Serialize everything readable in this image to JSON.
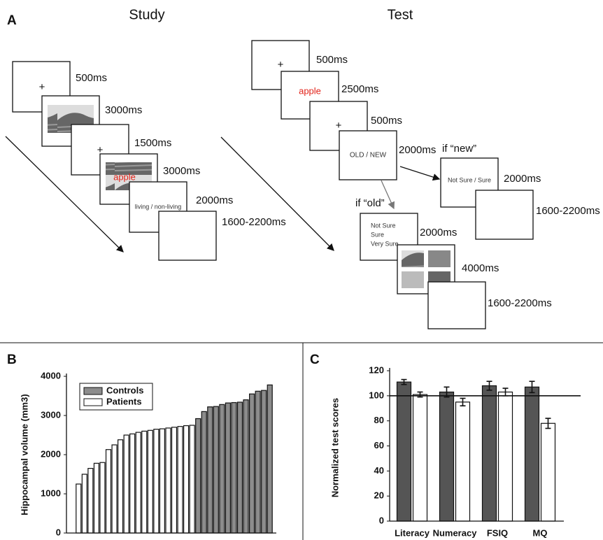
{
  "panel_a": {
    "label": "A",
    "study": {
      "title": "Study",
      "frames": [
        {
          "content": "+",
          "duration": "500ms"
        },
        {
          "duration": "3000ms"
        },
        {
          "content": "+",
          "duration": "1500ms"
        },
        {
          "content": "apple",
          "duration": "3000ms"
        },
        {
          "content": "living / non-living",
          "duration": "2000ms"
        },
        {
          "duration": "1600-2200ms"
        }
      ]
    },
    "test": {
      "title": "Test",
      "frames": [
        {
          "content": "+",
          "duration": "500ms"
        },
        {
          "content": "apple",
          "duration": "2500ms"
        },
        {
          "content": "+",
          "duration": "500ms"
        },
        {
          "content": "OLD / NEW",
          "duration": "2000ms"
        }
      ],
      "branches": [
        {
          "condition": "if “new”",
          "frames": [
            {
              "content": "Not Sure / Sure",
              "duration": "2000ms"
            },
            {
              "duration": "1600-2200ms"
            }
          ]
        },
        {
          "condition": "if “old”",
          "frames": [
            {
              "content": [
                "Not Sure",
                "Sure",
                "Very Sure"
              ],
              "duration": "2000ms"
            },
            {
              "duration": "4000ms"
            },
            {
              "duration": "1600-2200ms"
            }
          ]
        }
      ]
    }
  },
  "chart_data": [
    {
      "type": "bar",
      "panel_label": "B",
      "y_label": "Hippocampal volume (mm3)",
      "categories": [
        null,
        null,
        null,
        null,
        null,
        null,
        null,
        null,
        null,
        null,
        null,
        null,
        null,
        null,
        null,
        null,
        null,
        null,
        null,
        null,
        null,
        null,
        null,
        null,
        null,
        null,
        null,
        null,
        null,
        null,
        null,
        null,
        null
      ],
      "series": [
        {
          "name": "Controls",
          "color": "#8c8c8c",
          "values": [
            null,
            null,
            null,
            null,
            null,
            null,
            null,
            null,
            null,
            null,
            null,
            null,
            null,
            null,
            null,
            null,
            null,
            null,
            null,
            null,
            2920,
            3100,
            3220,
            3230,
            3280,
            3320,
            3330,
            3340,
            3400,
            3550,
            3620,
            3640,
            3780
          ]
        },
        {
          "name": "Patients",
          "color": "#ffffff",
          "values": [
            1250,
            1500,
            1650,
            1780,
            1800,
            2130,
            2250,
            2380,
            2500,
            2530,
            2570,
            2600,
            2620,
            2650,
            2660,
            2680,
            2700,
            2720,
            2740,
            2750,
            null,
            null,
            null,
            null,
            null,
            null,
            null,
            null,
            null,
            null,
            null,
            null,
            null
          ]
        }
      ],
      "ylim": [
        0,
        4000
      ],
      "yticks": [
        0,
        1000,
        2000,
        3000,
        4000
      ],
      "legend": "upper left"
    },
    {
      "type": "bar",
      "panel_label": "C",
      "y_label": "Normalized test scores",
      "categories": [
        "Literacy",
        "Numeracy",
        "FSIQ",
        "MQ"
      ],
      "series": [
        {
          "color": "#555555",
          "values": [
            111,
            103,
            108,
            107
          ],
          "errors": [
            2,
            4,
            3.5,
            4.5
          ]
        },
        {
          "color": "#ffffff",
          "values": [
            101,
            95,
            103,
            78
          ],
          "errors": [
            2,
            3,
            3,
            4
          ]
        }
      ],
      "ylim": [
        0,
        120
      ],
      "yticks": [
        0,
        20,
        40,
        60,
        80,
        100,
        120
      ],
      "reference_line": 100
    }
  ]
}
